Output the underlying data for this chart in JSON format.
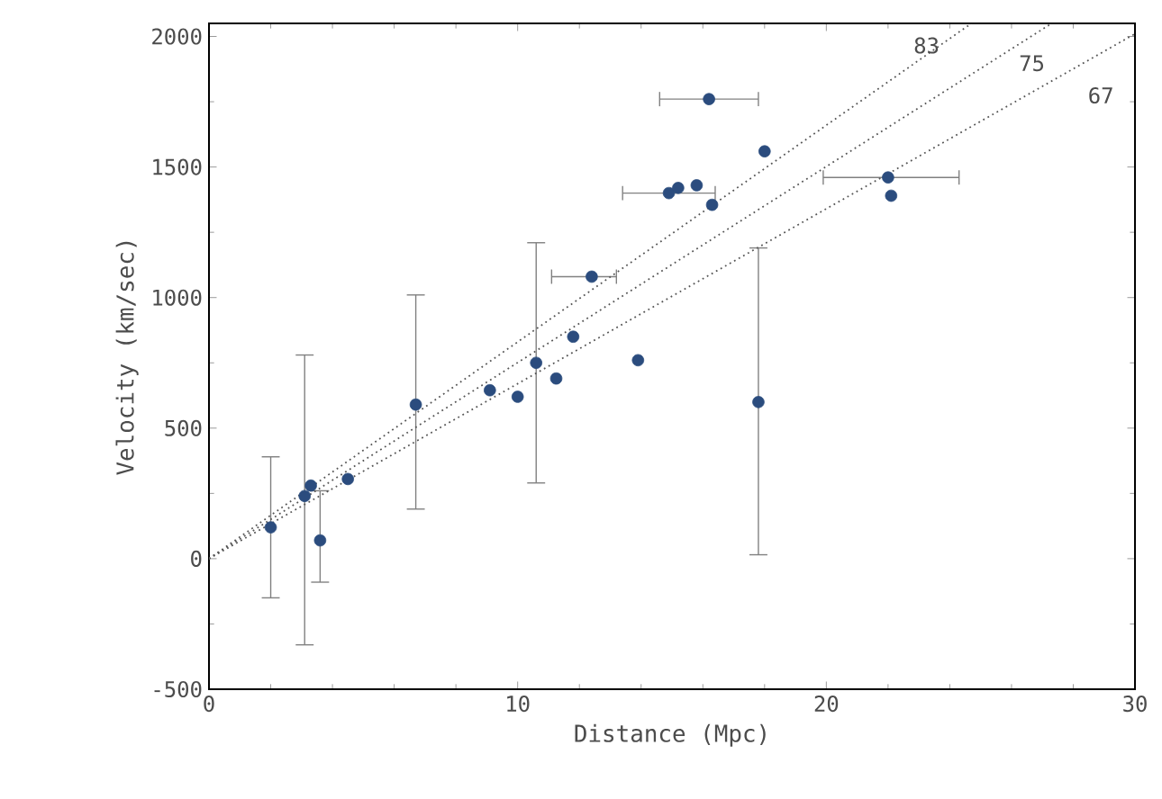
{
  "chart_data": {
    "type": "scatter",
    "xlabel": "Distance (Mpc)",
    "ylabel": "Velocity (km/sec)",
    "xlim": [
      0,
      30
    ],
    "ylim": [
      -500,
      2050
    ],
    "xticks": [
      0,
      10,
      20,
      30
    ],
    "yticks": [
      -500,
      0,
      500,
      1000,
      1500,
      2000
    ],
    "grid": false,
    "legend": false,
    "series": [
      {
        "color": "#2b4c7e",
        "marker": "circle",
        "x": [
          2.0,
          3.1,
          3.3,
          3.6,
          4.5,
          6.7,
          9.1,
          10.0,
          10.6,
          11.25,
          11.8,
          12.4,
          13.9,
          14.9,
          15.2,
          15.8,
          16.3,
          16.2,
          18.0,
          17.8,
          22.0,
          22.1
        ],
        "values": [
          120,
          240,
          280,
          70,
          305,
          590,
          645,
          620,
          750,
          690,
          850,
          1080,
          760,
          1400,
          1420,
          1430,
          1355,
          1760,
          1560,
          600,
          1460,
          1390
        ],
        "errors": [
          [
            -150,
            390
          ],
          [
            -330,
            780
          ],
          null,
          [
            -90,
            260
          ],
          null,
          [
            190,
            1010
          ],
          null,
          null,
          [
            290,
            1210
          ],
          null,
          null,
          null,
          null,
          null,
          null,
          null,
          null,
          null,
          null,
          [
            15,
            1190
          ],
          null,
          null
        ],
        "xerrors": [
          null,
          null,
          null,
          null,
          null,
          null,
          null,
          null,
          null,
          null,
          null,
          [
            11.1,
            13.2
          ],
          null,
          [
            13.4,
            16.4
          ],
          null,
          null,
          null,
          [
            14.6,
            17.8
          ],
          null,
          null,
          [
            19.9,
            24.3
          ],
          null
        ]
      },
      {
        "name": "83",
        "type": "line",
        "color": "#555555",
        "line_style": "dotted",
        "marker": "none",
        "x": [
          0,
          24.7
        ],
        "values": [
          0,
          2050
        ]
      },
      {
        "name": "75",
        "type": "line",
        "color": "#555555",
        "line_style": "dotted",
        "marker": "none",
        "x": [
          0,
          27.3
        ],
        "values": [
          0,
          2050
        ]
      },
      {
        "name": "67",
        "type": "line",
        "color": "#555555",
        "line_style": "dotted",
        "marker": "none",
        "x": [
          0,
          30
        ],
        "values": [
          0,
          2010
        ]
      }
    ]
  }
}
